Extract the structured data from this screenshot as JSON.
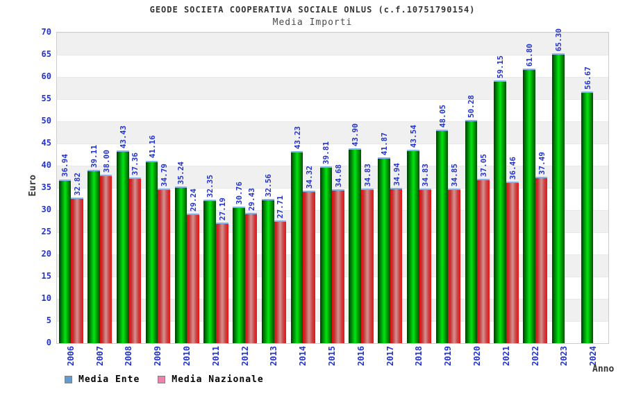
{
  "header": {
    "title": "GEODE SOCIETA COOPERATIVA SOCIALE ONLUS (c.f.10751790154)",
    "subtitle": "Media Importi"
  },
  "chart_data": {
    "type": "bar",
    "title": "GEODE SOCIETA COOPERATIVA SOCIALE ONLUS (c.f.10751790154)",
    "subtitle": "Media Importi",
    "xlabel": "Anno",
    "ylabel": "Euro",
    "ylim": [
      0,
      70
    ],
    "ytick_step": 5,
    "grid": true,
    "legend_position": "bottom-left",
    "value_label_format": "2-decimals",
    "categories": [
      "2006",
      "2007",
      "2008",
      "2009",
      "2010",
      "2011",
      "2012",
      "2013",
      "2014",
      "2015",
      "2016",
      "2017",
      "2018",
      "2019",
      "2020",
      "2021",
      "2022",
      "2023",
      "2024"
    ],
    "series": [
      {
        "name": "Media Ente",
        "legend_color": "#6699cc",
        "bar_color": "#00cc00",
        "values": [
          36.94,
          39.11,
          43.43,
          41.16,
          35.24,
          32.35,
          30.76,
          32.56,
          43.23,
          39.81,
          43.9,
          41.87,
          43.54,
          48.05,
          50.28,
          59.15,
          61.8,
          65.3,
          56.67
        ]
      },
      {
        "name": "Media Nazionale",
        "legend_color": "#ee82ad",
        "bar_color": "#e03030",
        "values": [
          32.82,
          38.0,
          37.36,
          34.79,
          29.24,
          27.19,
          29.43,
          27.71,
          34.32,
          34.68,
          34.83,
          34.94,
          34.83,
          34.85,
          37.05,
          36.46,
          37.49,
          null,
          null
        ]
      }
    ]
  },
  "colors": {
    "tick_label_blue": "#2233cc",
    "band_gray": "#f0f0f0",
    "plot_border": "#cccccc",
    "bar_cap_blue": "#82b2ec",
    "title_gray": "#333333"
  }
}
